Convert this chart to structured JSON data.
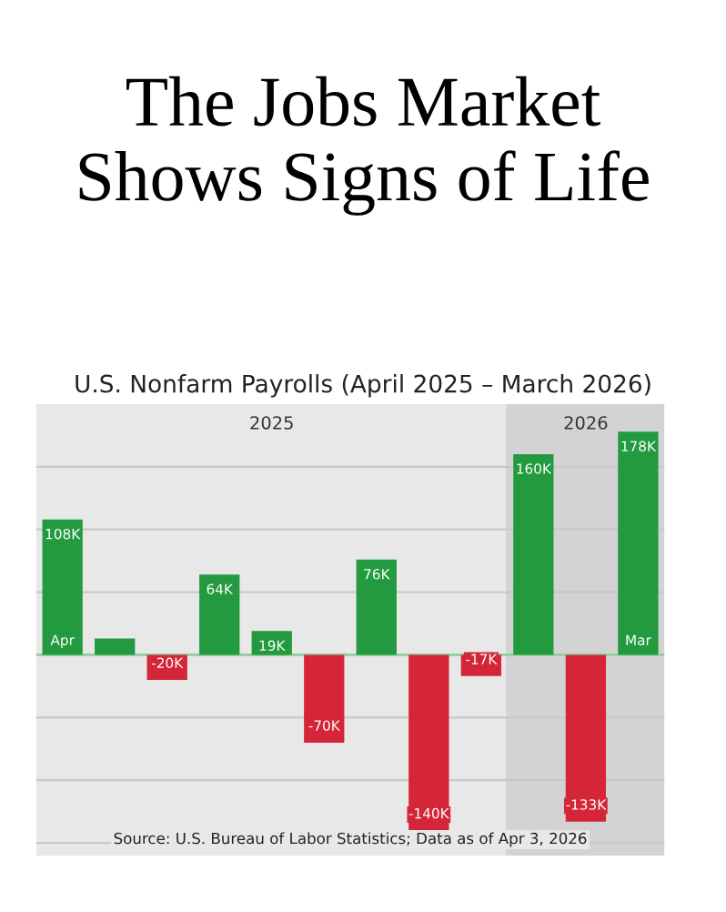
{
  "chart_data": {
    "type": "bar",
    "title": "The Jobs Market\nShows Signs of Life",
    "subtitle": "U.S. Nonfarm Payrolls (April 2025 – March 2026)",
    "categories": [
      "Apr",
      null,
      null,
      null,
      null,
      null,
      null,
      null,
      null,
      null,
      null,
      "Mar"
    ],
    "values": [
      108,
      13,
      -20,
      64,
      19,
      -70,
      76,
      -140,
      -17,
      160,
      -133,
      178
    ],
    "value_labels": [
      "108K",
      null,
      "-20K",
      "64K",
      "19K",
      "-70K",
      "76K",
      "-140K",
      "-17K",
      "160K",
      "-133K",
      "178K"
    ],
    "colors": [
      "#239a3f",
      "#239a3f",
      "#d42638",
      "#239a3f",
      "#239a3f",
      "#d42638",
      "#239a3f",
      "#d42638",
      "#d42638",
      "#239a3f",
      "#d42638",
      "#239a3f"
    ],
    "ylim": [
      -160,
      200
    ],
    "yticks": [
      {
        "value": -150,
        "label": null
      },
      {
        "value": -100,
        "label": null
      },
      {
        "value": -50,
        "label": null
      },
      {
        "value": 0,
        "label": null
      },
      {
        "value": 50,
        "label": null
      },
      {
        "value": 100,
        "label": null
      },
      {
        "value": 150,
        "label": null
      }
    ],
    "grid": "y",
    "annotations": [
      "2025",
      "2026",
      "Source: U.S. Bureau of Labor Statistics; Data as of Apr 3, 2026"
    ]
  }
}
